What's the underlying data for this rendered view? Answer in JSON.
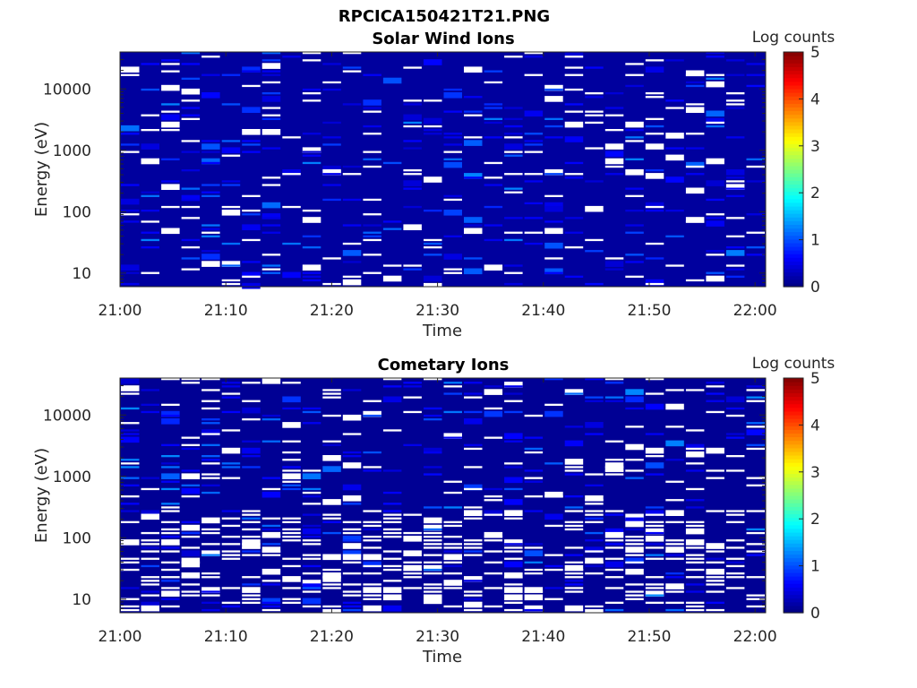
{
  "figure": {
    "title": "RPCICA150421T21.PNG"
  },
  "chart_data": [
    {
      "type": "heatmap",
      "title": "Solar Wind Ions",
      "xlabel": "Time",
      "ylabel": "Energy (eV)",
      "x_ticks": [
        "21:00",
        "21:10",
        "21:20",
        "21:30",
        "21:40",
        "21:50",
        "22:00"
      ],
      "x_range": [
        "21:00",
        "22:01"
      ],
      "y_scale": "log",
      "y_ticks": [
        "10",
        "100",
        "1000",
        "10000"
      ],
      "y_range": [
        6,
        40000
      ],
      "colorbar_label": "Log counts",
      "colorbar_ticks": [
        "0",
        "1",
        "2",
        "3",
        "4",
        "5"
      ],
      "colorbar_range": [
        0,
        5
      ],
      "colormap": "jet",
      "above_range_color": "#ffffff",
      "time_columns": 32,
      "energy_bins": 64,
      "fill_level": 0.15,
      "saturated_fraction": 0.09,
      "seed": 7
    },
    {
      "type": "heatmap",
      "title": "Cometary Ions",
      "xlabel": "Time",
      "ylabel": "Energy (eV)",
      "x_ticks": [
        "21:00",
        "21:10",
        "21:20",
        "21:30",
        "21:40",
        "21:50",
        "22:00"
      ],
      "x_range": [
        "21:00",
        "22:01"
      ],
      "y_scale": "log",
      "y_ticks": [
        "10",
        "100",
        "1000",
        "10000"
      ],
      "y_range": [
        6,
        40000
      ],
      "colorbar_label": "Log counts",
      "colorbar_ticks": [
        "0",
        "1",
        "2",
        "3",
        "4",
        "5"
      ],
      "colorbar_range": [
        0,
        5
      ],
      "colormap": "jet",
      "above_range_color": "#ffffff",
      "time_columns": 32,
      "energy_bins": 64,
      "fill_level": 0.1,
      "saturated_fraction": 0.3,
      "seed": 19
    }
  ]
}
